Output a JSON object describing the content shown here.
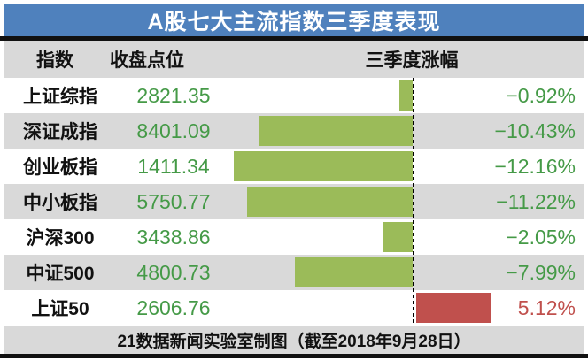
{
  "title": "A股七大主流指数三季度表现",
  "columns": {
    "index": "指数",
    "close": "收盘点位",
    "change": "三季度涨幅"
  },
  "rows": [
    {
      "name": "上证综指",
      "close": "2821.35",
      "change": "−0.92%",
      "change_value": -0.92
    },
    {
      "name": "深证成指",
      "close": "8401.09",
      "change": "−10.43%",
      "change_value": -10.43
    },
    {
      "name": "创业板指",
      "close": "1411.34",
      "change": "−12.16%",
      "change_value": -12.16
    },
    {
      "name": "中小板指",
      "close": "5750.77",
      "change": "−11.22%",
      "change_value": -11.22
    },
    {
      "name": "沪深300",
      "close": "3438.86",
      "change": "−2.05%",
      "change_value": -2.05
    },
    {
      "name": "中证500",
      "close": "4800.73",
      "change": "−7.99%",
      "change_value": -7.99
    },
    {
      "name": "上证50",
      "close": "2606.76",
      "change": "5.12%",
      "change_value": 5.12
    }
  ],
  "footer": "21数据新闻实验室制图（截至2018年9月28日）",
  "colors": {
    "title_bg": "#4F81BD",
    "title_text": "#FFFFFF",
    "stripe_gray": "#D9D9D9",
    "row_white": "#FFFFFF",
    "bar_negative": "#9BBB59",
    "bar_positive": "#C0504D",
    "text_negative": "#459A47",
    "text_positive": "#C0504D",
    "close_text": "#459A47",
    "divider": "#111111"
  },
  "chart_data": {
    "type": "bar",
    "orientation": "horizontal",
    "title": "A股七大主流指数三季度表现",
    "categories": [
      "上证综指",
      "深证成指",
      "创业板指",
      "中小板指",
      "沪深300",
      "中证500",
      "上证50"
    ],
    "series": [
      {
        "name": "收盘点位",
        "values": [
          2821.35,
          8401.09,
          1411.34,
          5750.77,
          3438.86,
          4800.73,
          2606.76
        ]
      },
      {
        "name": "三季度涨幅(%)",
        "values": [
          -0.92,
          -10.43,
          -12.16,
          -11.22,
          -2.05,
          -7.99,
          5.12
        ]
      }
    ],
    "value_axis": {
      "baseline": 0,
      "approx_range": [
        -13,
        6
      ],
      "gridlines": false
    },
    "legend": "none",
    "negative_bar_color": "#9BBB59",
    "positive_bar_color": "#C0504D",
    "annotation": "21数据新闻实验室制图（截至2018年9月28日）"
  }
}
